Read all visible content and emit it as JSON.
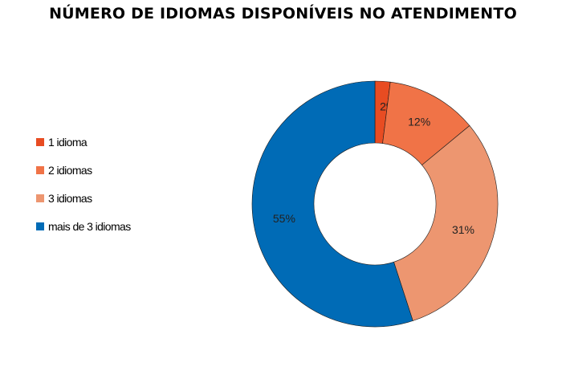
{
  "chart_data": {
    "type": "pie",
    "variant": "donut",
    "title": "NÚMERO DE IDIOMAS DISPONÍVEIS NO ATENDIMENTO",
    "legend_position": "left",
    "categories": [
      "1 idioma",
      "2 idiomas",
      "3 idiomas",
      "mais de 3 idiomas"
    ],
    "values": [
      2,
      12,
      31,
      55
    ],
    "value_labels": [
      "2%",
      "12%",
      "31%",
      "55%"
    ],
    "colors": [
      "#e84c22",
      "#f07347",
      "#ed9670",
      "#006bb6"
    ]
  }
}
